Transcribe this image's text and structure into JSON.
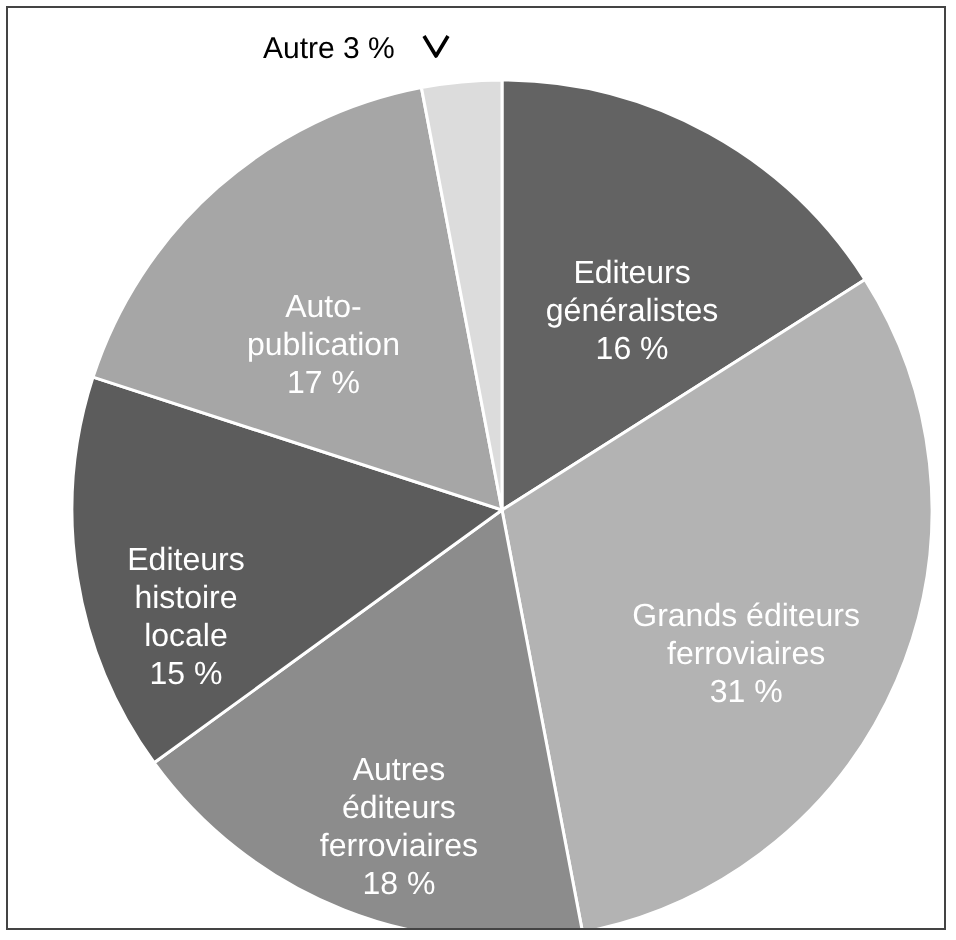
{
  "chart_data": {
    "type": "pie",
    "categories": [
      "Editeurs généralistes",
      "Grands éditeurs ferroviaires",
      "Autres éditeurs ferroviaires",
      "Editeurs histoire locale",
      "Auto-publication",
      "Autre"
    ],
    "values": [
      16,
      31,
      18,
      15,
      17,
      3
    ],
    "colors": [
      "#636363",
      "#b3b3b3",
      "#8c8c8c",
      "#5c5c5c",
      "#a6a6a6",
      "#dcdcdc"
    ],
    "value_labels": [
      "16 %",
      "31 %",
      "18 %",
      "15 %",
      "17 %",
      "3 %"
    ]
  }
}
